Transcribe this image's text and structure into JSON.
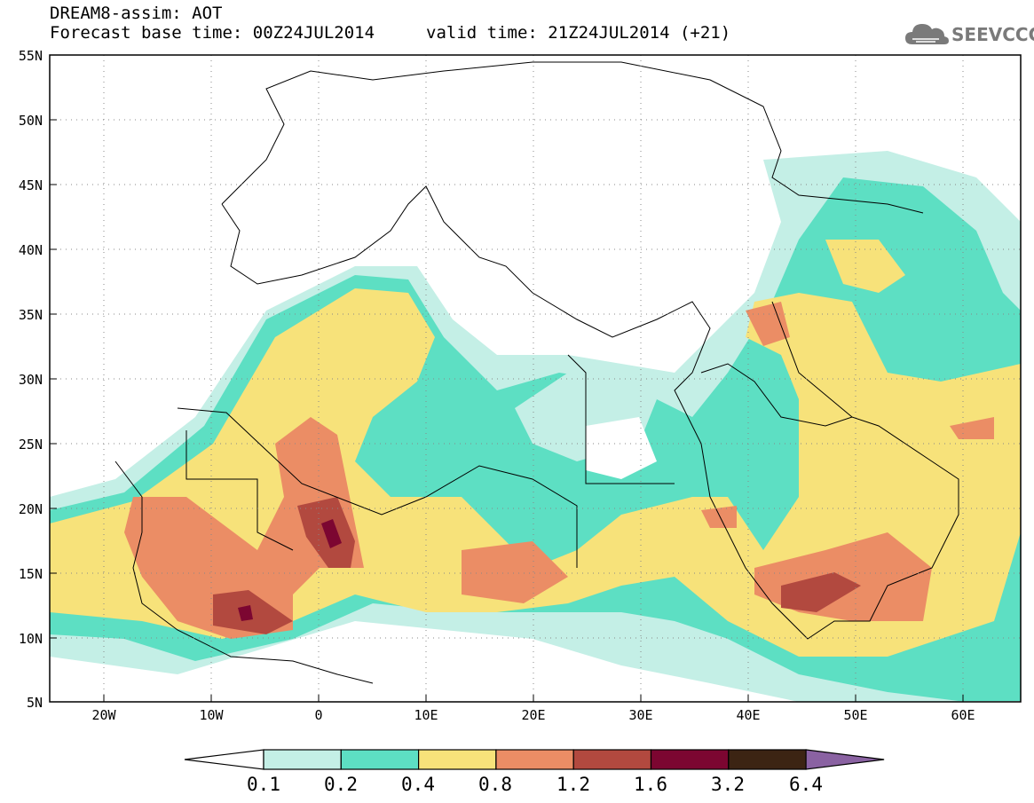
{
  "header": {
    "title_line1": "DREAM8-assim: AOT",
    "title_line2": "Forecast base time: 00Z24JUL2014",
    "valid_time": "valid time: 21Z24JUL2014 (+21)"
  },
  "logo": {
    "icon": "cloud-icon",
    "text": "SEEVCCC",
    "color": "#7a7a7a"
  },
  "map": {
    "lat_labels": [
      "55N",
      "50N",
      "45N",
      "40N",
      "35N",
      "30N",
      "25N",
      "20N",
      "15N",
      "10N",
      "5N"
    ],
    "lon_labels": [
      "20W",
      "10W",
      "0",
      "10E",
      "20E",
      "30E",
      "40E",
      "50E",
      "60E"
    ],
    "extent": {
      "lon_min": -25,
      "lon_max": 65,
      "lat_min": 5,
      "lat_max": 55
    },
    "grid": true
  },
  "colorbar": {
    "labels": [
      "0.1",
      "0.2",
      "0.4",
      "0.8",
      "1.2",
      "1.6",
      "3.2",
      "6.4"
    ],
    "colors": [
      "#ffffff",
      "#c4efe6",
      "#5ddfc3",
      "#f7e27a",
      "#eb8d65",
      "#b2493f",
      "#7c0631",
      "#3c2413",
      "#8a62a2"
    ]
  }
}
